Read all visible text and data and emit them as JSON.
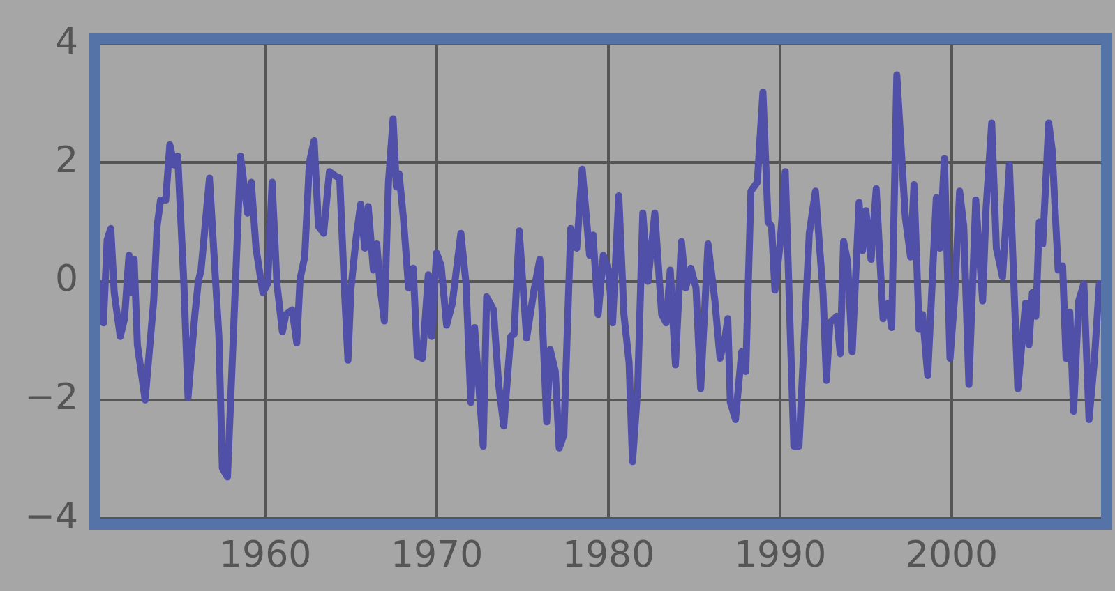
{
  "chart_data": {
    "type": "line",
    "color": "#5050a8",
    "grid": true,
    "legend": false,
    "xlim": [
      1950.4,
      2008.7
    ],
    "xticks": [
      1960,
      1970,
      1980,
      1990,
      2000
    ],
    "ylim": [
      -4,
      4
    ],
    "yticks": [
      {
        "value": -4,
        "label": "−4"
      },
      {
        "value": -2,
        "label": "−2"
      },
      0,
      2,
      4
    ],
    "x": [
      1950.46,
      1950.57,
      1950.79,
      1951.0,
      1951.2,
      1951.55,
      1951.8,
      1952.06,
      1952.2,
      1952.36,
      1952.55,
      1953.0,
      1953.5,
      1953.7,
      1953.9,
      1954.2,
      1954.44,
      1954.7,
      1954.9,
      1955.26,
      1955.5,
      1955.9,
      1956.1,
      1956.26,
      1956.75,
      1957.3,
      1957.5,
      1957.8,
      1958.16,
      1958.56,
      1958.97,
      1959.19,
      1959.46,
      1959.86,
      1960.14,
      1960.4,
      1960.68,
      1961.0,
      1961.2,
      1961.57,
      1961.84,
      1962.03,
      1962.3,
      1962.57,
      1962.85,
      1963.1,
      1963.4,
      1963.74,
      1964.07,
      1964.34,
      1964.6,
      1964.82,
      1965.0,
      1965.3,
      1965.56,
      1965.8,
      1966.0,
      1966.3,
      1966.5,
      1966.7,
      1966.94,
      1967.18,
      1967.45,
      1967.64,
      1967.8,
      1968.05,
      1968.35,
      1968.62,
      1968.86,
      1969.16,
      1969.5,
      1969.7,
      1969.98,
      1970.25,
      1970.57,
      1970.9,
      1971.4,
      1971.7,
      1971.98,
      1972.2,
      1972.7,
      1972.9,
      1973.3,
      1973.6,
      1973.9,
      1974.3,
      1974.5,
      1974.8,
      1975.23,
      1975.66,
      1976.0,
      1976.4,
      1976.6,
      1976.9,
      1977.13,
      1977.4,
      1977.8,
      1978.15,
      1978.47,
      1978.9,
      1979.1,
      1979.4,
      1979.7,
      1980.0,
      1980.24,
      1980.6,
      1980.9,
      1981.2,
      1981.4,
      1981.7,
      1982.0,
      1982.3,
      1982.7,
      1983.1,
      1983.36,
      1983.6,
      1983.9,
      1984.25,
      1984.5,
      1984.8,
      1985.1,
      1985.37,
      1985.8,
      1986.2,
      1986.5,
      1986.8,
      1986.95,
      1987.1,
      1987.4,
      1987.76,
      1988.0,
      1988.3,
      1988.67,
      1989.0,
      1989.3,
      1989.5,
      1989.7,
      1990.0,
      1990.3,
      1990.8,
      1991.1,
      1991.7,
      1992.06,
      1992.5,
      1992.7,
      1992.9,
      1993.3,
      1993.5,
      1993.7,
      1993.93,
      1994.2,
      1994.6,
      1994.8,
      1995.0,
      1995.3,
      1995.6,
      1996.0,
      1996.3,
      1996.5,
      1996.8,
      1997.05,
      1997.3,
      1997.6,
      1997.8,
      1998.1,
      1998.3,
      1998.6,
      1999.1,
      1999.3,
      1999.57,
      1999.9,
      2000.17,
      2000.46,
      2000.7,
      2001.0,
      2001.4,
      2001.8,
      2002.0,
      2002.33,
      2002.6,
      2002.96,
      2003.36,
      2003.85,
      2004.3,
      2004.5,
      2004.7,
      2004.9,
      2005.1,
      2005.3,
      2005.65,
      2005.85,
      2006.2,
      2006.46,
      2006.66,
      2006.88,
      2007.1,
      2007.4,
      2007.7,
      2008.0,
      2008.3,
      2008.6
    ],
    "values": [
      -0.04,
      -0.7,
      0.7,
      0.89,
      -0.19,
      -0.93,
      -0.63,
      0.44,
      -0.19,
      0.37,
      -1.07,
      -2.0,
      -0.33,
      0.93,
      1.37,
      1.37,
      2.3,
      1.96,
      2.11,
      -0.04,
      -1.96,
      -0.56,
      0.0,
      0.19,
      1.74,
      -0.93,
      -3.15,
      -3.3,
      -0.78,
      2.11,
      1.15,
      1.67,
      0.56,
      -0.19,
      -0.04,
      1.67,
      -0.04,
      -0.85,
      -0.56,
      -0.48,
      -1.04,
      0.04,
      0.41,
      2.0,
      2.37,
      0.93,
      0.81,
      1.85,
      1.78,
      1.74,
      -0.04,
      -1.33,
      -0.11,
      0.74,
      1.3,
      0.56,
      1.26,
      0.19,
      0.63,
      -0.11,
      -0.67,
      1.67,
      2.74,
      1.59,
      1.81,
      1.07,
      -0.11,
      0.22,
      -1.26,
      -1.3,
      0.11,
      -0.93,
      0.48,
      0.26,
      -0.74,
      -0.37,
      0.81,
      -0.04,
      -2.04,
      -0.78,
      -2.78,
      -0.26,
      -0.48,
      -1.74,
      -2.44,
      -0.93,
      -0.89,
      0.85,
      -0.96,
      -0.15,
      0.37,
      -2.37,
      -1.15,
      -1.52,
      -2.81,
      -2.59,
      0.89,
      0.56,
      1.89,
      0.44,
      0.78,
      -0.56,
      0.44,
      0.19,
      -0.7,
      1.44,
      -0.56,
      -1.37,
      -3.04,
      -1.81,
      1.15,
      0.0,
      1.15,
      -0.56,
      -0.7,
      0.19,
      -1.41,
      0.67,
      -0.11,
      0.22,
      -0.11,
      -1.81,
      0.63,
      -0.33,
      -1.3,
      -0.93,
      -0.63,
      -2.04,
      -2.33,
      -1.19,
      -1.52,
      1.52,
      1.67,
      3.19,
      1.0,
      0.93,
      -0.15,
      0.63,
      1.85,
      -2.78,
      -2.78,
      0.81,
      1.52,
      -0.19,
      -1.67,
      -0.7,
      -0.59,
      -1.22,
      0.67,
      0.33,
      -1.19,
      1.33,
      0.52,
      1.19,
      0.37,
      1.56,
      -0.63,
      -0.37,
      -0.78,
      3.48,
      2.26,
      1.07,
      0.41,
      1.63,
      -0.81,
      -0.56,
      -1.59,
      1.41,
      0.56,
      2.07,
      -1.3,
      -0.26,
      1.52,
      0.93,
      -1.74,
      1.37,
      -0.33,
      1.22,
      2.67,
      0.56,
      0.07,
      1.96,
      -1.81,
      -0.37,
      -1.07,
      -0.19,
      -0.59,
      1.0,
      0.63,
      2.67,
      2.22,
      0.19,
      0.26,
      -1.3,
      -0.52,
      -2.19,
      -0.33,
      -0.04,
      -2.33,
      -1.37,
      -0.04
    ]
  }
}
